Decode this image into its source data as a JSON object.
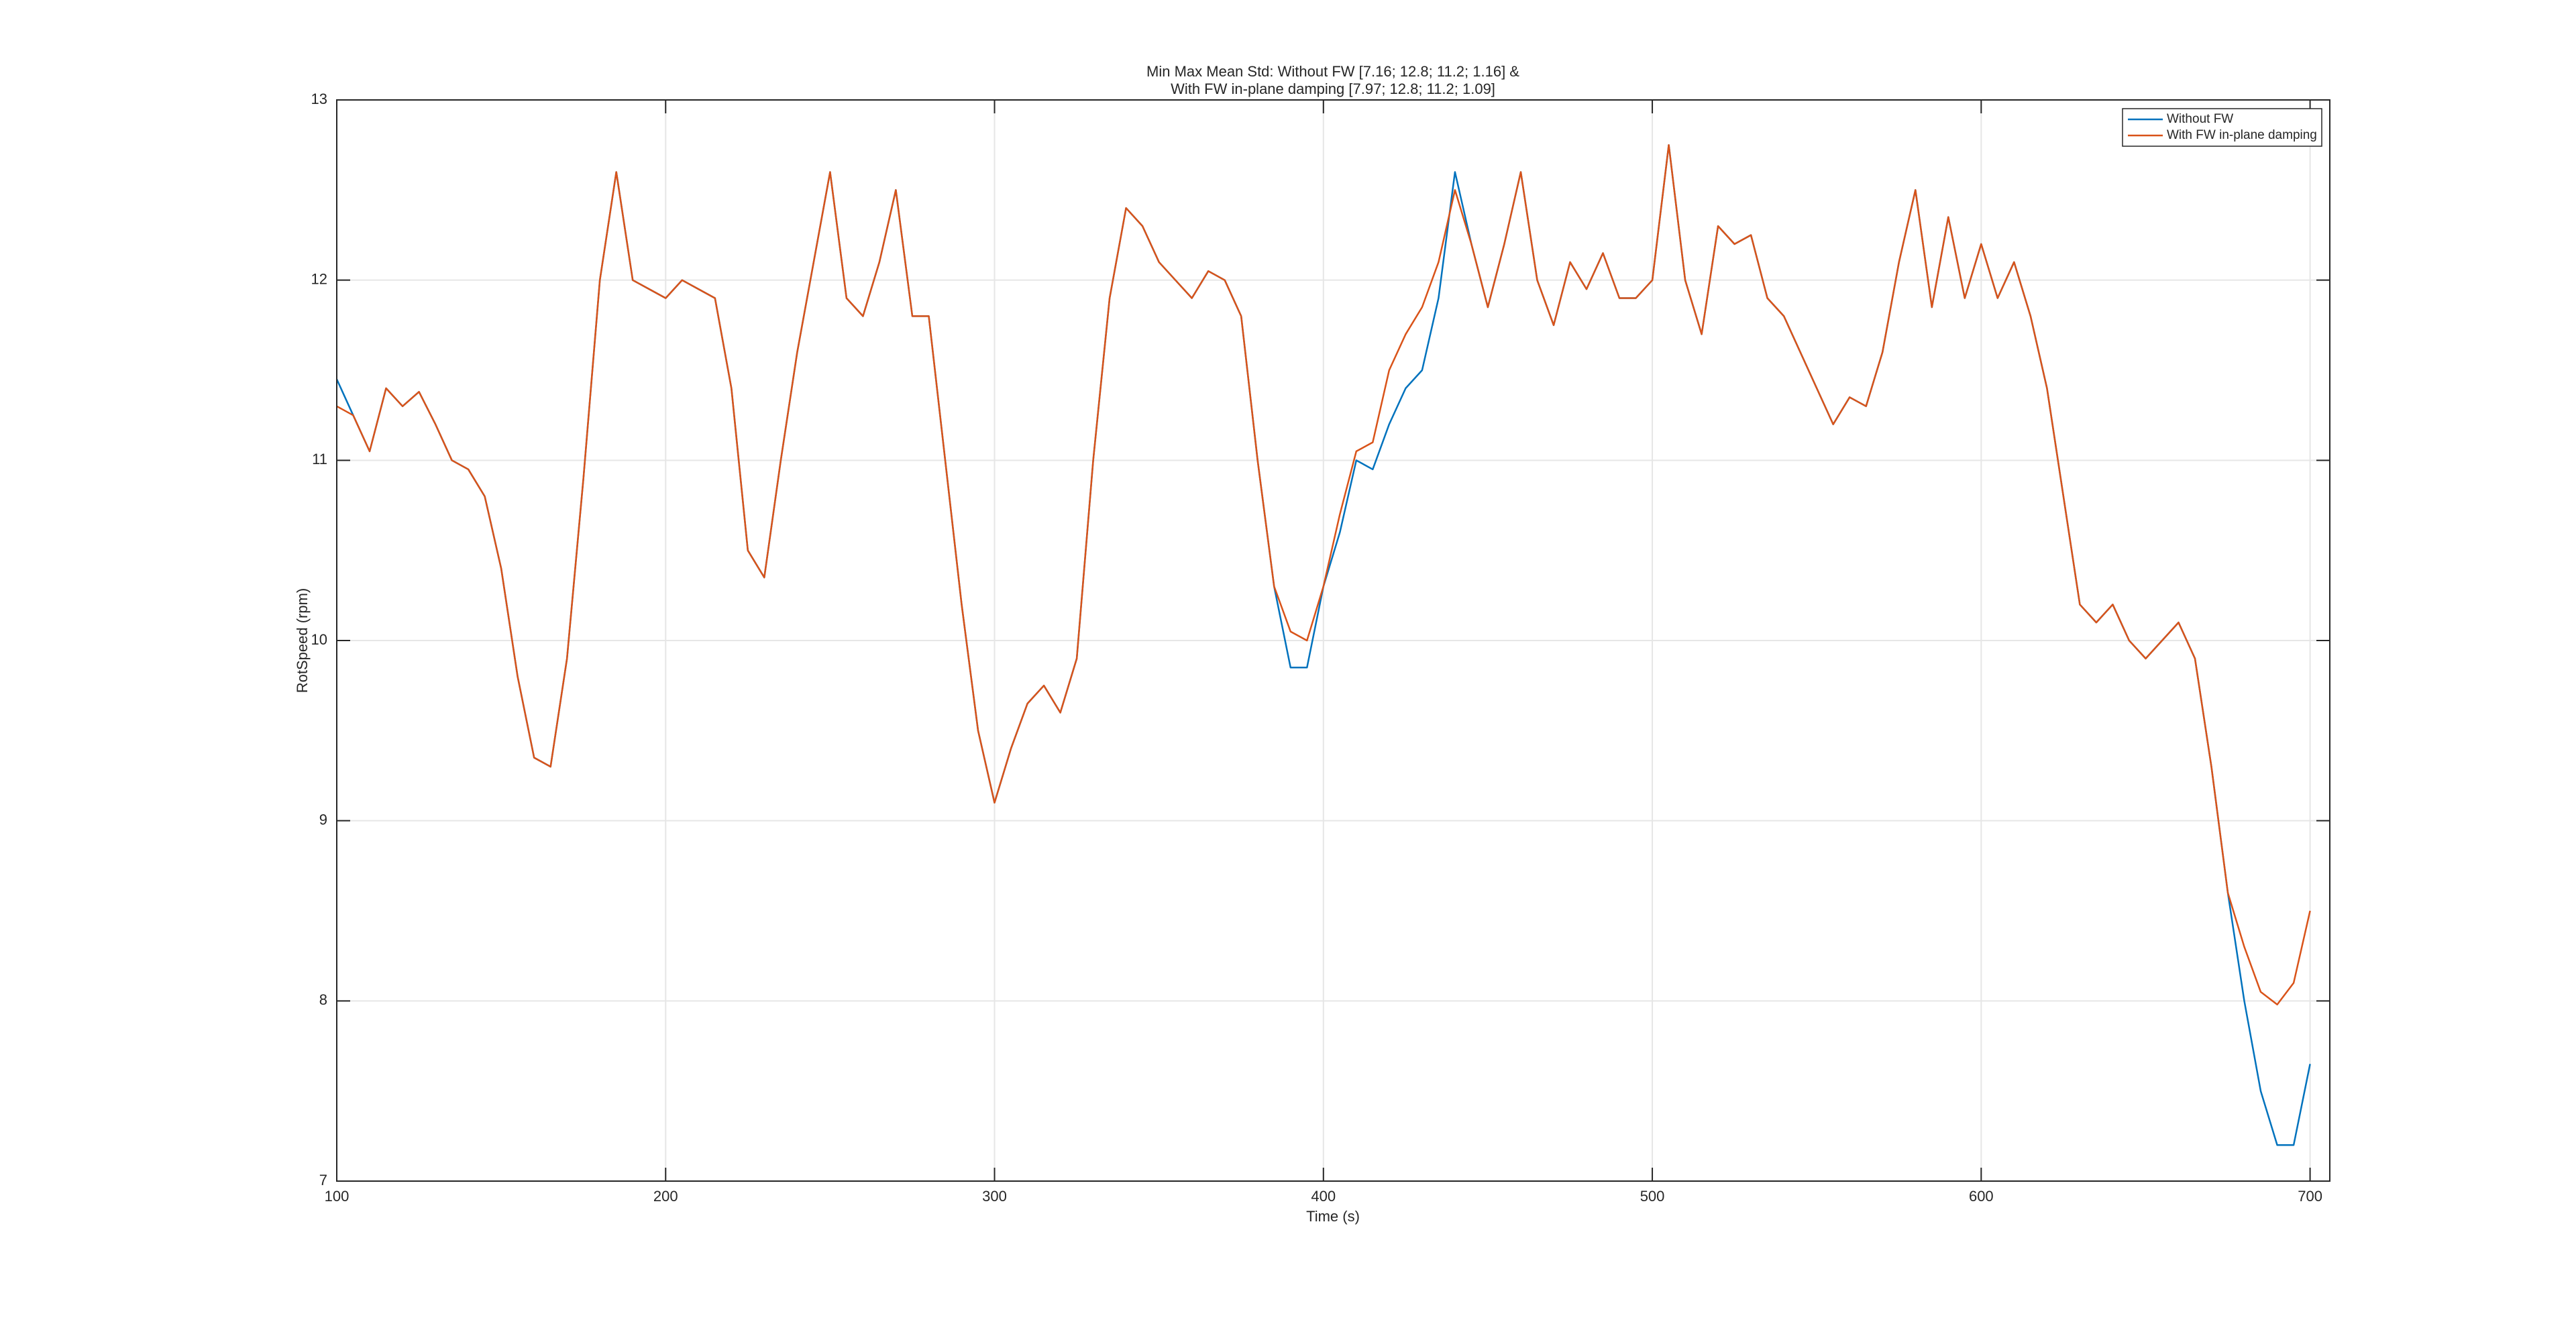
{
  "chart_data": {
    "type": "line",
    "title": [
      "Min Max Mean Std: Without FW [7.16; 12.8; 11.2; 1.16] &",
      "With FW in-plane damping [7.97; 12.8; 11.2; 1.09]"
    ],
    "xlabel": "Time (s)",
    "ylabel": "RotSpeed (rpm)",
    "x": [
      100,
      105,
      110,
      115,
      120,
      125,
      130,
      135,
      140,
      145,
      150,
      155,
      160,
      165,
      170,
      175,
      180,
      185,
      190,
      195,
      200,
      205,
      210,
      215,
      220,
      225,
      230,
      235,
      240,
      245,
      250,
      255,
      260,
      265,
      270,
      275,
      280,
      285,
      290,
      295,
      300,
      305,
      310,
      315,
      320,
      325,
      330,
      335,
      340,
      345,
      350,
      355,
      360,
      365,
      370,
      375,
      380,
      385,
      390,
      395,
      400,
      405,
      410,
      415,
      420,
      425,
      430,
      435,
      440,
      445,
      450,
      455,
      460,
      465,
      470,
      475,
      480,
      485,
      490,
      495,
      500,
      505,
      510,
      515,
      520,
      525,
      530,
      535,
      540,
      545,
      550,
      555,
      560,
      565,
      570,
      575,
      580,
      585,
      590,
      595,
      600,
      605,
      610,
      615,
      620,
      625,
      630,
      635,
      640,
      645,
      650,
      655,
      660,
      665,
      670,
      675,
      680,
      685,
      690,
      695,
      700
    ],
    "series": [
      {
        "name": "Without FW",
        "color": "#0072BD",
        "values": [
          11.45,
          11.25,
          11.05,
          11.4,
          11.3,
          11.38,
          11.2,
          11.0,
          10.95,
          10.8,
          10.4,
          9.8,
          9.35,
          9.3,
          9.9,
          10.9,
          12.0,
          12.6,
          12.0,
          11.95,
          11.9,
          12.0,
          11.95,
          11.9,
          11.4,
          10.5,
          10.35,
          11.0,
          11.6,
          12.1,
          12.6,
          11.9,
          11.8,
          12.1,
          12.5,
          11.8,
          11.8,
          11.0,
          10.2,
          9.5,
          9.1,
          9.4,
          9.65,
          9.75,
          9.6,
          9.9,
          11.0,
          11.9,
          12.4,
          12.3,
          12.1,
          12.0,
          11.9,
          12.05,
          12.0,
          11.8,
          11.0,
          10.3,
          9.85,
          9.85,
          10.3,
          10.6,
          11.0,
          10.95,
          11.2,
          11.4,
          11.5,
          11.9,
          12.6,
          12.2,
          11.85,
          12.2,
          12.6,
          12.0,
          11.75,
          12.1,
          11.95,
          12.15,
          11.9,
          11.9,
          12.0,
          12.75,
          12.0,
          11.7,
          12.3,
          12.2,
          12.25,
          11.9,
          11.8,
          11.6,
          11.4,
          11.2,
          11.35,
          11.3,
          11.6,
          12.1,
          12.5,
          11.85,
          12.35,
          11.9,
          12.2,
          11.9,
          12.1,
          11.8,
          11.4,
          10.8,
          10.2,
          10.1,
          10.2,
          10.0,
          9.9,
          10.0,
          10.1,
          9.9,
          9.3,
          8.6,
          8.0,
          7.5,
          7.2,
          7.2,
          7.65
        ]
      },
      {
        "name": "With FW in-plane damping",
        "color": "#D95319",
        "values": [
          11.3,
          11.25,
          11.05,
          11.4,
          11.3,
          11.38,
          11.2,
          11.0,
          10.95,
          10.8,
          10.4,
          9.8,
          9.35,
          9.3,
          9.9,
          10.9,
          12.0,
          12.6,
          12.0,
          11.95,
          11.9,
          12.0,
          11.95,
          11.9,
          11.4,
          10.5,
          10.35,
          11.0,
          11.6,
          12.1,
          12.6,
          11.9,
          11.8,
          12.1,
          12.5,
          11.8,
          11.8,
          11.0,
          10.2,
          9.5,
          9.1,
          9.4,
          9.65,
          9.75,
          9.6,
          9.9,
          11.0,
          11.9,
          12.4,
          12.3,
          12.1,
          12.0,
          11.9,
          12.05,
          12.0,
          11.8,
          11.0,
          10.3,
          10.05,
          10.0,
          10.3,
          10.7,
          11.05,
          11.1,
          11.5,
          11.7,
          11.85,
          12.1,
          12.5,
          12.2,
          11.85,
          12.2,
          12.6,
          12.0,
          11.75,
          12.1,
          11.95,
          12.15,
          11.9,
          11.9,
          12.0,
          12.75,
          12.0,
          11.7,
          12.3,
          12.2,
          12.25,
          11.9,
          11.8,
          11.6,
          11.4,
          11.2,
          11.35,
          11.3,
          11.6,
          12.1,
          12.5,
          11.85,
          12.35,
          11.9,
          12.2,
          11.9,
          12.1,
          11.8,
          11.4,
          10.8,
          10.2,
          10.1,
          10.2,
          10.0,
          9.9,
          10.0,
          10.1,
          9.9,
          9.3,
          8.6,
          8.3,
          8.05,
          7.98,
          8.1,
          8.5
        ]
      }
    ],
    "xlim": [
      100,
      706
    ],
    "ylim": [
      7,
      13
    ],
    "xticks": [
      100,
      200,
      300,
      400,
      500,
      600,
      700
    ],
    "yticks": [
      7,
      8,
      9,
      10,
      11,
      12,
      13
    ],
    "grid": true,
    "legend": "northeast"
  }
}
